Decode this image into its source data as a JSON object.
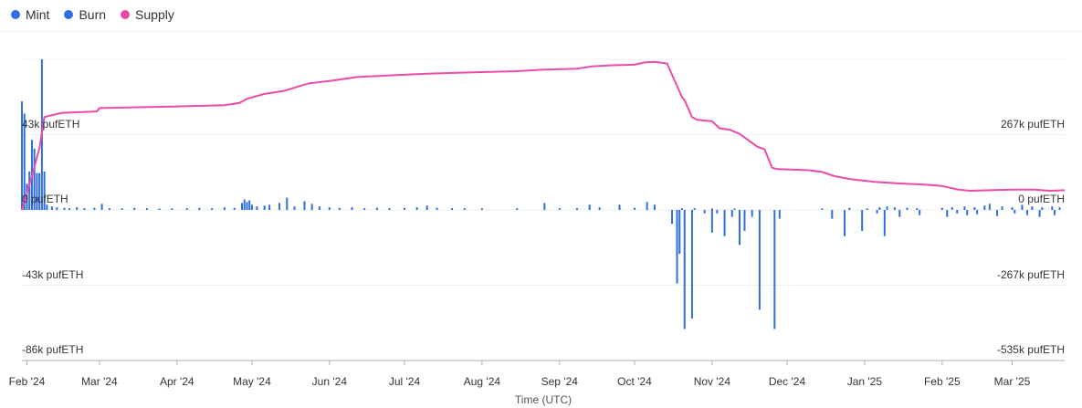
{
  "legend": [
    {
      "label": "Mint",
      "color": "#2f6fe0"
    },
    {
      "label": "Burn",
      "color": "#2f6fe0"
    },
    {
      "label": "Supply",
      "color": "#ee4aa6"
    }
  ],
  "chart_data": {
    "type": "bar",
    "xlabel": "Time (UTC)",
    "x_ticks": [
      "Feb '24",
      "Mar '24",
      "Apr '24",
      "May '24",
      "Jun '24",
      "Jul '24",
      "Aug '24",
      "Sep '24",
      "Oct '24",
      "Nov '24",
      "Dec '24",
      "Jan '25",
      "Feb '25",
      "Mar '25"
    ],
    "y_left": {
      "label_unit": "pufETH",
      "ticks": [
        "43k pufETH",
        "0 pufETH",
        "-43k pufETH",
        "-86k pufETH"
      ],
      "range": [
        -86000,
        86000
      ]
    },
    "y_right": {
      "label_unit": "pufETH",
      "ticks": [
        "267k pufETH",
        "0 pufETH",
        "-267k pufETH",
        "-535k pufETH"
      ],
      "range": [
        -535000,
        535000
      ]
    },
    "grid": true,
    "legend_position": "top-left",
    "x_range": [
      "2024-01-30",
      "2025-03-22"
    ],
    "series": [
      {
        "name": "Mint",
        "axis": "left",
        "color": "#2f6fe0",
        "points": [
          [
            "2024-01-30",
            62000
          ],
          [
            "2024-01-31",
            55000
          ],
          [
            "2024-02-01",
            15000
          ],
          [
            "2024-02-02",
            22000
          ],
          [
            "2024-02-03",
            40000
          ],
          [
            "2024-02-04",
            35000
          ],
          [
            "2024-02-05",
            21000
          ],
          [
            "2024-02-06",
            21000
          ],
          [
            "2024-02-07",
            86000
          ],
          [
            "2024-02-08",
            22000
          ],
          [
            "2024-02-09",
            3000
          ],
          [
            "2024-02-11",
            2000
          ],
          [
            "2024-02-13",
            1500
          ],
          [
            "2024-02-16",
            1200
          ],
          [
            "2024-02-18",
            1000
          ],
          [
            "2024-02-21",
            1500
          ],
          [
            "2024-02-24",
            1000
          ],
          [
            "2024-02-28",
            1200
          ],
          [
            "2024-03-02",
            3500
          ],
          [
            "2024-03-05",
            1000
          ],
          [
            "2024-03-10",
            900
          ],
          [
            "2024-03-15",
            1200
          ],
          [
            "2024-03-20",
            1000
          ],
          [
            "2024-03-25",
            800
          ],
          [
            "2024-03-30",
            900
          ],
          [
            "2024-04-05",
            1000
          ],
          [
            "2024-04-10",
            1200
          ],
          [
            "2024-04-15",
            1000
          ],
          [
            "2024-04-20",
            1500
          ],
          [
            "2024-04-24",
            1200
          ],
          [
            "2024-04-27",
            4000
          ],
          [
            "2024-04-28",
            6000
          ],
          [
            "2024-04-29",
            4500
          ],
          [
            "2024-04-30",
            5500
          ],
          [
            "2024-05-01",
            3000
          ],
          [
            "2024-05-03",
            2000
          ],
          [
            "2024-05-06",
            2500
          ],
          [
            "2024-05-08",
            3000
          ],
          [
            "2024-05-12",
            4000
          ],
          [
            "2024-05-15",
            7000
          ],
          [
            "2024-05-18",
            2000
          ],
          [
            "2024-05-22",
            5000
          ],
          [
            "2024-05-25",
            3500
          ],
          [
            "2024-05-28",
            2000
          ],
          [
            "2024-06-01",
            1500
          ],
          [
            "2024-06-05",
            1200
          ],
          [
            "2024-06-10",
            1500
          ],
          [
            "2024-06-15",
            1000
          ],
          [
            "2024-06-20",
            1300
          ],
          [
            "2024-06-25",
            1000
          ],
          [
            "2024-07-01",
            1200
          ],
          [
            "2024-07-06",
            1500
          ],
          [
            "2024-07-10",
            2500
          ],
          [
            "2024-07-14",
            1200
          ],
          [
            "2024-07-20",
            1000
          ],
          [
            "2024-07-25",
            1000
          ],
          [
            "2024-08-01",
            900
          ],
          [
            "2024-08-15",
            900
          ],
          [
            "2024-08-26",
            4000
          ],
          [
            "2024-09-01",
            1000
          ],
          [
            "2024-09-08",
            1000
          ],
          [
            "2024-09-13",
            3000
          ],
          [
            "2024-09-17",
            1500
          ],
          [
            "2024-09-25",
            3000
          ],
          [
            "2024-10-01",
            1200
          ],
          [
            "2024-10-06",
            4500
          ],
          [
            "2024-10-09",
            3000
          ],
          [
            "2024-10-20",
            1000
          ],
          [
            "2024-10-25",
            1000
          ],
          [
            "2024-11-01",
            900
          ],
          [
            "2024-11-10",
            800
          ],
          [
            "2024-12-15",
            800
          ],
          [
            "2024-12-26",
            1200
          ],
          [
            "2025-01-02",
            900
          ],
          [
            "2025-01-07",
            1500
          ],
          [
            "2025-01-10",
            2000
          ],
          [
            "2025-01-13",
            1500
          ],
          [
            "2025-01-18",
            1200
          ],
          [
            "2025-01-22",
            1000
          ],
          [
            "2025-02-01",
            1200
          ],
          [
            "2025-02-05",
            1500
          ],
          [
            "2025-02-10",
            2000
          ],
          [
            "2025-02-14",
            1500
          ],
          [
            "2025-02-18",
            2500
          ],
          [
            "2025-02-20",
            3500
          ],
          [
            "2025-02-25",
            2000
          ],
          [
            "2025-03-01",
            1500
          ],
          [
            "2025-03-05",
            3000
          ],
          [
            "2025-03-09",
            2000
          ],
          [
            "2025-03-13",
            1500
          ],
          [
            "2025-03-17",
            2000
          ],
          [
            "2025-03-20",
            1500
          ]
        ]
      },
      {
        "name": "Burn",
        "axis": "left",
        "color": "#2f6fe0",
        "points": [
          [
            "2024-10-16",
            -8000
          ],
          [
            "2024-10-18",
            -42000
          ],
          [
            "2024-10-19",
            -25000
          ],
          [
            "2024-10-21",
            -68000
          ],
          [
            "2024-10-24",
            -62000
          ],
          [
            "2024-10-29",
            -2000
          ],
          [
            "2024-11-01",
            -13000
          ],
          [
            "2024-11-03",
            -2000
          ],
          [
            "2024-11-06",
            -15000
          ],
          [
            "2024-11-09",
            -4000
          ],
          [
            "2024-11-12",
            -20000
          ],
          [
            "2024-11-14",
            -12000
          ],
          [
            "2024-11-17",
            -4000
          ],
          [
            "2024-11-20",
            -57000
          ],
          [
            "2024-11-26",
            -68000
          ],
          [
            "2024-11-28",
            -5000
          ],
          [
            "2024-12-19",
            -5000
          ],
          [
            "2024-12-24",
            -15000
          ],
          [
            "2024-12-31",
            -12000
          ],
          [
            "2025-01-06",
            -2000
          ],
          [
            "2025-01-09",
            -15000
          ],
          [
            "2025-01-15",
            -4000
          ],
          [
            "2025-01-23",
            -3000
          ],
          [
            "2025-02-03",
            -4000
          ],
          [
            "2025-02-07",
            -2000
          ],
          [
            "2025-02-11",
            -3000
          ],
          [
            "2025-02-15",
            -2500
          ],
          [
            "2025-02-23",
            -3500
          ],
          [
            "2025-03-02",
            -2000
          ],
          [
            "2025-03-07",
            -3000
          ],
          [
            "2025-03-12",
            -4000
          ],
          [
            "2025-03-18",
            -3000
          ]
        ]
      },
      {
        "name": "Supply",
        "axis": "right",
        "color": "#ee4aa6",
        "points": [
          [
            "2024-01-30",
            0
          ],
          [
            "2024-02-03",
            120000
          ],
          [
            "2024-02-06",
            220000
          ],
          [
            "2024-02-08",
            330000
          ],
          [
            "2024-02-15",
            345000
          ],
          [
            "2024-02-29",
            350000
          ],
          [
            "2024-03-01",
            362000
          ],
          [
            "2024-03-30",
            367000
          ],
          [
            "2024-04-20",
            372000
          ],
          [
            "2024-04-26",
            380000
          ],
          [
            "2024-04-29",
            395000
          ],
          [
            "2024-05-06",
            412000
          ],
          [
            "2024-05-14",
            423000
          ],
          [
            "2024-05-20",
            440000
          ],
          [
            "2024-05-24",
            450000
          ],
          [
            "2024-06-01",
            458000
          ],
          [
            "2024-06-12",
            472000
          ],
          [
            "2024-06-25",
            478000
          ],
          [
            "2024-07-10",
            484000
          ],
          [
            "2024-07-25",
            488000
          ],
          [
            "2024-08-15",
            493000
          ],
          [
            "2024-08-25",
            498000
          ],
          [
            "2024-09-08",
            502000
          ],
          [
            "2024-09-14",
            510000
          ],
          [
            "2024-09-22",
            514000
          ],
          [
            "2024-10-01",
            516000
          ],
          [
            "2024-10-05",
            524000
          ],
          [
            "2024-10-09",
            526000
          ],
          [
            "2024-10-14",
            520000
          ],
          [
            "2024-10-17",
            460000
          ],
          [
            "2024-10-20",
            400000
          ],
          [
            "2024-10-21",
            390000
          ],
          [
            "2024-10-24",
            330000
          ],
          [
            "2024-10-26",
            320000
          ],
          [
            "2024-11-01",
            315000
          ],
          [
            "2024-11-04",
            290000
          ],
          [
            "2024-11-08",
            285000
          ],
          [
            "2024-11-12",
            270000
          ],
          [
            "2024-11-19",
            225000
          ],
          [
            "2024-11-22",
            215000
          ],
          [
            "2024-11-25",
            150000
          ],
          [
            "2024-11-27",
            145000
          ],
          [
            "2024-12-10",
            141000
          ],
          [
            "2024-12-15",
            135000
          ],
          [
            "2024-12-20",
            120000
          ],
          [
            "2024-12-26",
            110000
          ],
          [
            "2025-01-05",
            100000
          ],
          [
            "2025-01-15",
            94000
          ],
          [
            "2025-01-25",
            90000
          ],
          [
            "2025-02-01",
            85000
          ],
          [
            "2025-02-07",
            73000
          ],
          [
            "2025-02-12",
            68000
          ],
          [
            "2025-02-20",
            70000
          ],
          [
            "2025-03-01",
            72000
          ],
          [
            "2025-03-10",
            72000
          ],
          [
            "2025-03-16",
            68000
          ],
          [
            "2025-03-22",
            70000
          ]
        ]
      }
    ]
  }
}
